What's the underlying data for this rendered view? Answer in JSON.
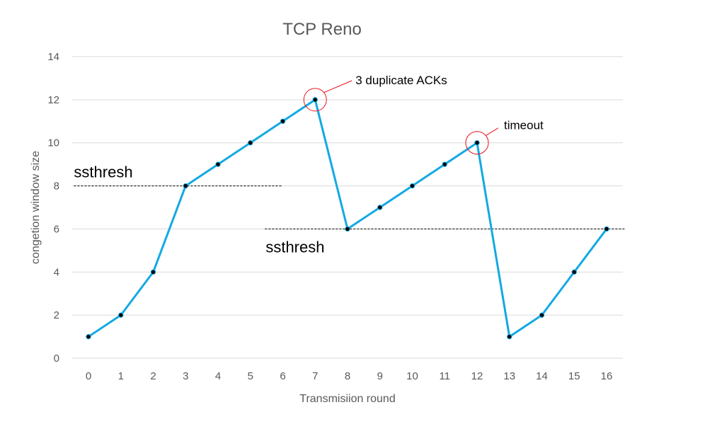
{
  "chart_data": {
    "type": "line",
    "title": "TCP Reno",
    "xlabel": "Transmisiion round",
    "ylabel": "congetion window size",
    "x": [
      0,
      1,
      2,
      3,
      4,
      5,
      6,
      7,
      8,
      9,
      10,
      11,
      12,
      13,
      14,
      15,
      16
    ],
    "x_tick_labels": [
      "0",
      "1",
      "2",
      "3",
      "4",
      "5",
      "6",
      "7",
      "8",
      "9",
      "10",
      "11",
      "12",
      "13",
      "14",
      "15",
      "16"
    ],
    "y_tick_labels": [
      "0",
      "2",
      "4",
      "6",
      "8",
      "10",
      "12",
      "14"
    ],
    "series": [
      {
        "values": [
          1,
          2,
          4,
          8,
          9,
          10,
          11,
          12,
          6,
          7,
          8,
          9,
          10,
          1,
          2,
          4,
          6
        ]
      }
    ],
    "ylim": [
      0,
      14
    ],
    "grid": "horizontal",
    "colors": {
      "line": "#13a9e3",
      "marker": "#000000",
      "circle": "#e8121b",
      "grid": "#d9d9d9",
      "threshold": "#000000"
    },
    "annotations": [
      {
        "text": "3 duplicate ACKs",
        "x": 7,
        "y": 12
      },
      {
        "text": "timeout",
        "x": 12,
        "y": 10
      }
    ],
    "thresholds": [
      {
        "label": "ssthresh",
        "y": 8,
        "x_from": -0.45,
        "x_to": 6
      },
      {
        "label": "ssthresh",
        "y": 6,
        "x_from": 5.45,
        "x_to": 16.6
      }
    ]
  }
}
